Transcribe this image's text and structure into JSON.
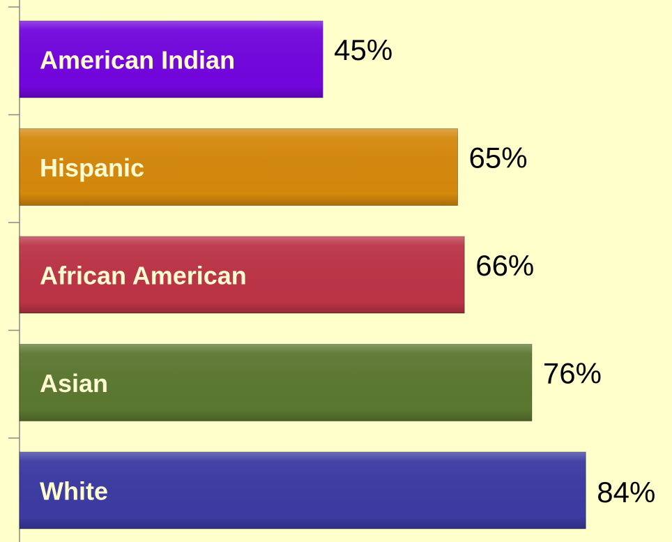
{
  "chart_data": {
    "type": "bar",
    "orientation": "horizontal",
    "categories": [
      "American Indian",
      "Hispanic",
      "African American",
      "Asian",
      "White"
    ],
    "values": [
      45,
      65,
      66,
      76,
      84
    ],
    "value_labels": [
      "45%",
      "65%",
      "66%",
      "76%",
      "84%"
    ],
    "colors": [
      "#7206dc",
      "#d4880c",
      "#bb3446",
      "#5b7831",
      "#3b3ba2"
    ]
  }
}
